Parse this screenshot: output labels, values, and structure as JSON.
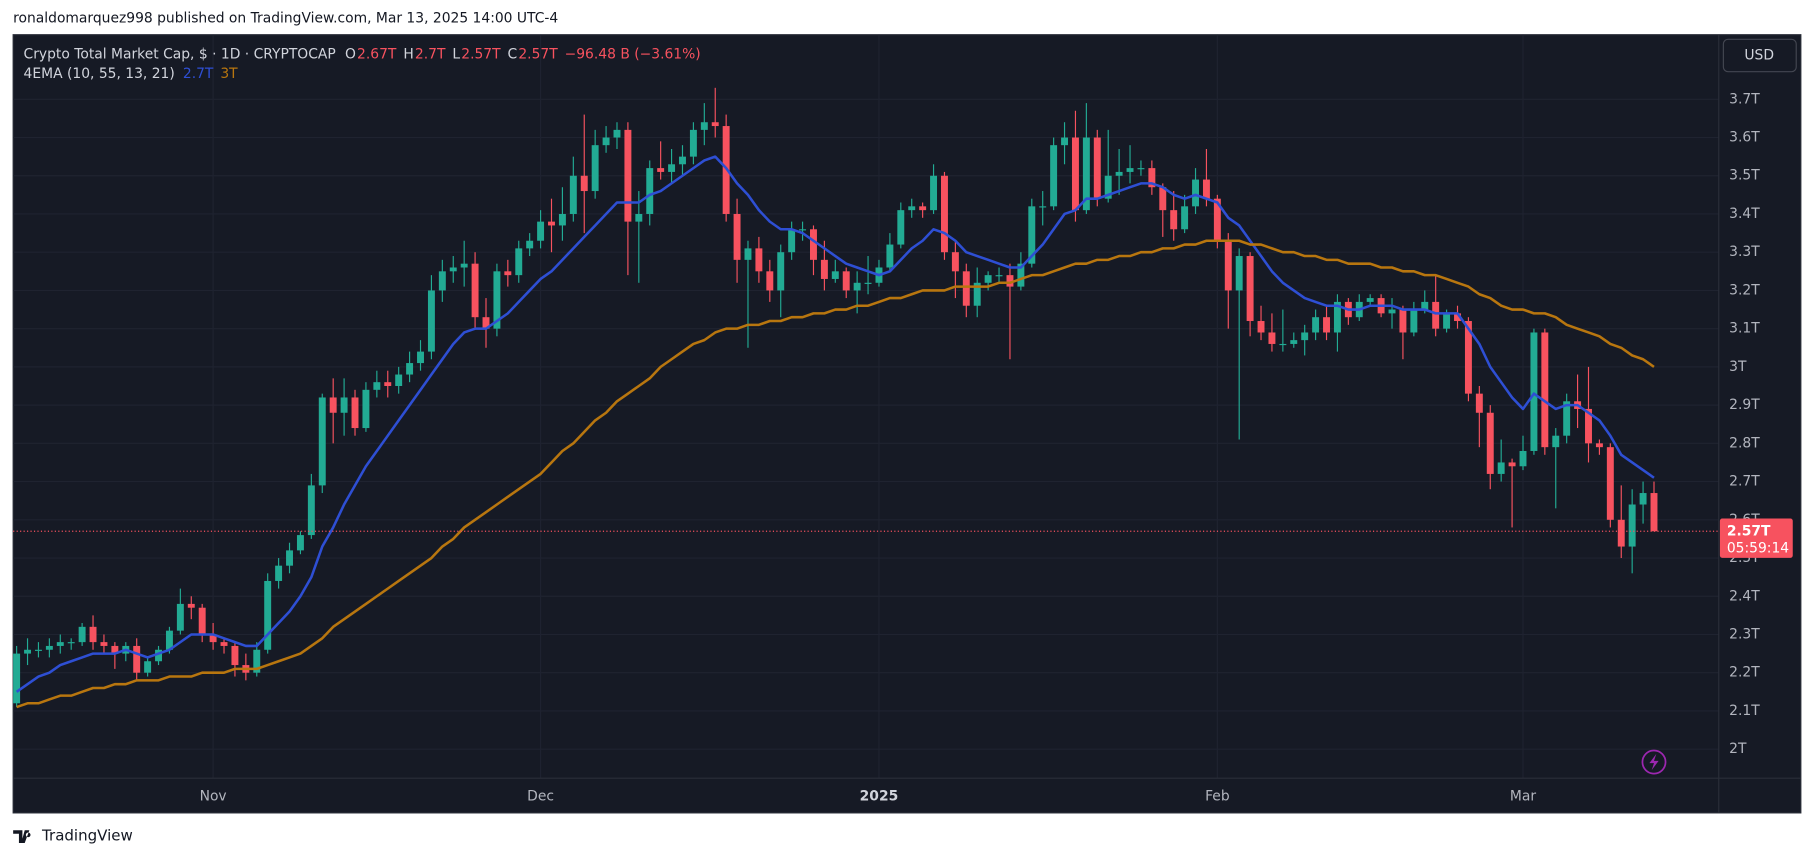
{
  "header": "ronaldomarquez998 published on TradingView.com, Mar 13, 2025 14:00 UTC-4",
  "footer": "TradingView",
  "currency": "USD",
  "legend": {
    "ohlc": [
      [
        "O",
        "2.67T"
      ],
      [
        "H",
        "2.7T"
      ],
      [
        "L",
        "2.57T"
      ],
      [
        "C",
        "2.57T"
      ]
    ],
    "change": "−96.48 B (−3.61%)",
    "indicator": "4EMA (10, 55, 13, 21)",
    "indicator_values": [
      "2.7T",
      "3T"
    ]
  },
  "chart_data": {
    "type": "candlestick",
    "title": "Crypto Total Market Cap, $ · 1D · CRYPTOCAP",
    "categories": [
      null,
      null,
      null,
      null,
      null,
      null,
      null,
      null,
      null,
      null,
      null,
      null,
      null,
      null,
      null,
      null,
      null,
      null,
      "Nov",
      null,
      null,
      null,
      null,
      null,
      null,
      null,
      null,
      null,
      null,
      null,
      null,
      null,
      null,
      null,
      null,
      null,
      null,
      null,
      null,
      null,
      null,
      null,
      null,
      null,
      null,
      null,
      null,
      null,
      "Dec",
      null,
      null,
      null,
      null,
      null,
      null,
      null,
      null,
      null,
      null,
      null,
      null,
      null,
      null,
      null,
      null,
      null,
      null,
      null,
      null,
      null,
      null,
      null,
      null,
      null,
      null,
      null,
      null,
      null,
      null,
      "2025",
      null,
      null,
      null,
      null,
      null,
      null,
      null,
      null,
      null,
      null,
      null,
      null,
      null,
      null,
      null,
      null,
      null,
      null,
      null,
      null,
      null,
      null,
      null,
      null,
      null,
      null,
      null,
      null,
      null,
      null,
      "Feb",
      null,
      null,
      null,
      null,
      null,
      null,
      null,
      null,
      null,
      null,
      null,
      null,
      null,
      null,
      null,
      null,
      null,
      null,
      null,
      null,
      null,
      null,
      null,
      null,
      null,
      null,
      null,
      "Mar",
      null,
      null,
      null,
      null,
      null,
      null,
      null,
      null,
      null,
      null,
      null,
      null
    ],
    "open": [
      2.12,
      2.25,
      2.26,
      2.26,
      2.27,
      2.28,
      2.28,
      2.32,
      2.28,
      2.27,
      2.25,
      2.27,
      2.2,
      2.23,
      2.26,
      2.31,
      2.38,
      2.37,
      2.3,
      2.28,
      2.27,
      2.22,
      2.2,
      2.26,
      2.44,
      2.48,
      2.52,
      2.56,
      2.69,
      2.92,
      2.88,
      2.92,
      2.84,
      2.94,
      2.96,
      2.95,
      2.98,
      3.01,
      3.04,
      3.2,
      3.25,
      3.26,
      3.27,
      3.13,
      3.1,
      3.25,
      3.24,
      3.31,
      3.33,
      3.38,
      3.37,
      3.4,
      3.5,
      3.46,
      3.58,
      3.6,
      3.62,
      3.38,
      3.4,
      3.52,
      3.51,
      3.53,
      3.55,
      3.62,
      3.64,
      3.63,
      3.4,
      3.28,
      3.31,
      3.25,
      3.2,
      3.3,
      3.36,
      3.36,
      3.28,
      3.23,
      3.25,
      3.2,
      3.22,
      3.22,
      3.26,
      3.32,
      3.41,
      3.42,
      3.41,
      3.5,
      3.3,
      3.25,
      3.16,
      3.22,
      3.24,
      3.24,
      3.21,
      3.27,
      3.42,
      3.42,
      3.58,
      3.6,
      3.41,
      3.6,
      3.44,
      3.5,
      3.51,
      3.52,
      3.52,
      3.47,
      3.41,
      3.36,
      3.42,
      3.49,
      3.44,
      3.33,
      3.2,
      3.29,
      3.12,
      3.09,
      3.06,
      3.06,
      3.07,
      3.09,
      3.13,
      3.09,
      3.17,
      3.13,
      3.17,
      3.18,
      3.14,
      3.15,
      3.09,
      3.15,
      3.17,
      3.1,
      3.14,
      3.12,
      2.93,
      2.88,
      2.72,
      2.75,
      2.74,
      2.78,
      3.09,
      2.79,
      2.82,
      2.91,
      2.89,
      2.8,
      2.79,
      2.6,
      2.53,
      2.64,
      2.67
    ],
    "high": [
      2.27,
      2.29,
      2.28,
      2.29,
      2.3,
      2.29,
      2.33,
      2.35,
      2.3,
      2.28,
      2.28,
      2.29,
      2.24,
      2.27,
      2.32,
      2.42,
      2.4,
      2.38,
      2.33,
      2.29,
      2.28,
      2.25,
      2.28,
      2.46,
      2.5,
      2.54,
      2.57,
      2.72,
      2.93,
      2.97,
      2.97,
      2.94,
      2.96,
      2.99,
      2.99,
      3.0,
      3.04,
      3.07,
      3.24,
      3.28,
      3.29,
      3.33,
      3.3,
      3.18,
      3.27,
      3.28,
      3.33,
      3.35,
      3.41,
      3.44,
      3.47,
      3.55,
      3.66,
      3.62,
      3.63,
      3.64,
      3.64,
      3.46,
      3.54,
      3.59,
      3.57,
      3.58,
      3.64,
      3.69,
      3.73,
      3.66,
      3.44,
      3.33,
      3.34,
      3.28,
      3.32,
      3.38,
      3.38,
      3.37,
      3.33,
      3.28,
      3.26,
      3.25,
      3.29,
      3.28,
      3.35,
      3.43,
      3.44,
      3.43,
      3.53,
      3.51,
      3.33,
      3.27,
      3.26,
      3.25,
      3.26,
      3.27,
      3.3,
      3.44,
      3.46,
      3.6,
      3.64,
      3.67,
      3.69,
      3.62,
      3.62,
      3.57,
      3.58,
      3.54,
      3.54,
      3.48,
      3.46,
      3.45,
      3.52,
      3.57,
      3.45,
      3.35,
      3.31,
      3.3,
      3.16,
      3.14,
      3.15,
      3.09,
      3.11,
      3.15,
      3.16,
      3.19,
      3.18,
      3.19,
      3.19,
      3.19,
      3.18,
      3.16,
      3.17,
      3.2,
      3.24,
      3.15,
      3.16,
      3.13,
      2.95,
      2.9,
      2.81,
      2.76,
      2.82,
      3.1,
      3.1,
      2.84,
      2.93,
      2.98,
      3.0,
      2.81,
      2.8,
      2.69,
      2.68,
      2.7,
      2.7
    ],
    "low": [
      2.11,
      2.22,
      2.24,
      2.24,
      2.25,
      2.26,
      2.27,
      2.26,
      2.25,
      2.21,
      2.23,
      2.18,
      2.19,
      2.22,
      2.25,
      2.3,
      2.34,
      2.28,
      2.26,
      2.25,
      2.19,
      2.18,
      2.19,
      2.25,
      2.42,
      2.46,
      2.51,
      2.55,
      2.67,
      2.8,
      2.82,
      2.82,
      2.83,
      2.92,
      2.92,
      2.93,
      2.96,
      2.99,
      3.02,
      3.17,
      3.22,
      3.21,
      3.1,
      3.05,
      3.08,
      3.21,
      3.22,
      3.29,
      3.31,
      3.3,
      3.33,
      3.38,
      3.35,
      3.44,
      3.56,
      3.57,
      3.24,
      3.22,
      3.37,
      3.49,
      3.48,
      3.5,
      3.53,
      3.58,
      3.6,
      3.38,
      3.22,
      3.05,
      3.22,
      3.17,
      3.13,
      3.28,
      3.33,
      3.24,
      3.2,
      3.22,
      3.18,
      3.14,
      3.19,
      3.21,
      3.25,
      3.31,
      3.39,
      3.39,
      3.4,
      3.28,
      3.18,
      3.13,
      3.13,
      3.2,
      3.22,
      3.02,
      3.2,
      3.26,
      3.37,
      3.41,
      3.53,
      3.38,
      3.4,
      3.42,
      3.43,
      3.45,
      3.48,
      3.5,
      3.45,
      3.34,
      3.33,
      3.35,
      3.4,
      3.42,
      3.31,
      3.1,
      2.81,
      3.08,
      3.07,
      3.04,
      3.04,
      3.05,
      3.03,
      3.07,
      3.07,
      3.04,
      3.11,
      3.12,
      3.16,
      3.13,
      3.1,
      3.02,
      3.08,
      3.14,
      3.08,
      3.09,
      3.1,
      2.91,
      2.79,
      2.68,
      2.7,
      2.58,
      2.73,
      2.77,
      2.77,
      2.63,
      2.8,
      2.84,
      2.75,
      2.77,
      2.58,
      2.5,
      2.46,
      2.59,
      2.57
    ],
    "close": [
      2.25,
      2.26,
      2.26,
      2.27,
      2.28,
      2.28,
      2.32,
      2.28,
      2.27,
      2.25,
      2.27,
      2.2,
      2.23,
      2.26,
      2.31,
      2.38,
      2.37,
      2.3,
      2.28,
      2.27,
      2.22,
      2.2,
      2.26,
      2.44,
      2.48,
      2.52,
      2.56,
      2.69,
      2.92,
      2.88,
      2.92,
      2.84,
      2.94,
      2.96,
      2.95,
      2.98,
      3.01,
      3.04,
      3.2,
      3.25,
      3.26,
      3.27,
      3.13,
      3.1,
      3.25,
      3.24,
      3.31,
      3.33,
      3.38,
      3.37,
      3.4,
      3.5,
      3.46,
      3.58,
      3.6,
      3.62,
      3.38,
      3.4,
      3.52,
      3.51,
      3.53,
      3.55,
      3.62,
      3.64,
      3.63,
      3.4,
      3.28,
      3.31,
      3.25,
      3.2,
      3.3,
      3.36,
      3.36,
      3.28,
      3.23,
      3.25,
      3.2,
      3.22,
      3.22,
      3.26,
      3.32,
      3.41,
      3.42,
      3.41,
      3.5,
      3.3,
      3.25,
      3.16,
      3.22,
      3.24,
      3.24,
      3.21,
      3.27,
      3.42,
      3.42,
      3.58,
      3.6,
      3.41,
      3.6,
      3.44,
      3.5,
      3.51,
      3.52,
      3.52,
      3.47,
      3.41,
      3.36,
      3.42,
      3.49,
      3.44,
      3.33,
      3.2,
      3.29,
      3.12,
      3.09,
      3.06,
      3.06,
      3.07,
      3.09,
      3.13,
      3.09,
      3.17,
      3.13,
      3.17,
      3.18,
      3.14,
      3.15,
      3.09,
      3.15,
      3.17,
      3.1,
      3.14,
      3.12,
      2.93,
      2.88,
      2.72,
      2.75,
      2.74,
      2.78,
      3.09,
      2.79,
      2.82,
      2.91,
      2.89,
      2.8,
      2.79,
      2.6,
      2.53,
      2.64,
      2.67,
      2.57
    ],
    "up_color": "#22ab94",
    "down_color": "#f7525f",
    "lines": [
      {
        "color": "#2e4fd4",
        "values": [
          2.15,
          2.17,
          2.19,
          2.2,
          2.22,
          2.23,
          2.24,
          2.25,
          2.25,
          2.25,
          2.26,
          2.25,
          2.24,
          2.25,
          2.26,
          2.28,
          2.3,
          2.3,
          2.3,
          2.29,
          2.28,
          2.27,
          2.27,
          2.3,
          2.33,
          2.36,
          2.4,
          2.45,
          2.53,
          2.58,
          2.64,
          2.69,
          2.74,
          2.78,
          2.82,
          2.86,
          2.9,
          2.94,
          2.98,
          3.02,
          3.06,
          3.09,
          3.1,
          3.1,
          3.12,
          3.14,
          3.17,
          3.2,
          3.23,
          3.25,
          3.28,
          3.31,
          3.34,
          3.37,
          3.4,
          3.43,
          3.43,
          3.43,
          3.45,
          3.46,
          3.48,
          3.5,
          3.52,
          3.54,
          3.55,
          3.52,
          3.48,
          3.45,
          3.41,
          3.38,
          3.36,
          3.36,
          3.35,
          3.33,
          3.31,
          3.29,
          3.27,
          3.26,
          3.25,
          3.24,
          3.25,
          3.28,
          3.31,
          3.33,
          3.36,
          3.35,
          3.33,
          3.3,
          3.29,
          3.28,
          3.27,
          3.26,
          3.26,
          3.29,
          3.32,
          3.36,
          3.4,
          3.41,
          3.44,
          3.44,
          3.45,
          3.46,
          3.47,
          3.48,
          3.48,
          3.47,
          3.45,
          3.44,
          3.45,
          3.44,
          3.43,
          3.39,
          3.37,
          3.33,
          3.29,
          3.25,
          3.22,
          3.2,
          3.18,
          3.17,
          3.16,
          3.16,
          3.15,
          3.15,
          3.16,
          3.16,
          3.16,
          3.15,
          3.15,
          3.15,
          3.14,
          3.14,
          3.14,
          3.1,
          3.06,
          3.0,
          2.96,
          2.92,
          2.89,
          2.93,
          2.91,
          2.89,
          2.9,
          2.9,
          2.88,
          2.86,
          2.82,
          2.77,
          2.75,
          2.73,
          2.71
        ]
      },
      {
        "color": "#b8760f",
        "values": [
          2.11,
          2.12,
          2.12,
          2.13,
          2.14,
          2.14,
          2.15,
          2.16,
          2.16,
          2.17,
          2.17,
          2.18,
          2.18,
          2.18,
          2.19,
          2.19,
          2.19,
          2.2,
          2.2,
          2.2,
          2.21,
          2.21,
          2.21,
          2.22,
          2.23,
          2.24,
          2.25,
          2.27,
          2.29,
          2.32,
          2.34,
          2.36,
          2.38,
          2.4,
          2.42,
          2.44,
          2.46,
          2.48,
          2.5,
          2.53,
          2.55,
          2.58,
          2.6,
          2.62,
          2.64,
          2.66,
          2.68,
          2.7,
          2.72,
          2.75,
          2.78,
          2.8,
          2.83,
          2.86,
          2.88,
          2.91,
          2.93,
          2.95,
          2.97,
          3.0,
          3.02,
          3.04,
          3.06,
          3.07,
          3.09,
          3.1,
          3.1,
          3.11,
          3.11,
          3.12,
          3.12,
          3.13,
          3.13,
          3.14,
          3.14,
          3.15,
          3.15,
          3.16,
          3.16,
          3.17,
          3.18,
          3.18,
          3.19,
          3.2,
          3.2,
          3.2,
          3.21,
          3.21,
          3.21,
          3.21,
          3.22,
          3.22,
          3.23,
          3.24,
          3.24,
          3.25,
          3.26,
          3.27,
          3.27,
          3.28,
          3.28,
          3.29,
          3.29,
          3.3,
          3.3,
          3.31,
          3.31,
          3.32,
          3.32,
          3.33,
          3.33,
          3.33,
          3.33,
          3.32,
          3.32,
          3.31,
          3.3,
          3.3,
          3.29,
          3.29,
          3.28,
          3.28,
          3.27,
          3.27,
          3.27,
          3.26,
          3.26,
          3.25,
          3.25,
          3.24,
          3.24,
          3.23,
          3.22,
          3.21,
          3.19,
          3.18,
          3.16,
          3.15,
          3.15,
          3.14,
          3.14,
          3.13,
          3.11,
          3.1,
          3.09,
          3.08,
          3.06,
          3.05,
          3.03,
          3.02,
          3.0
        ]
      }
    ],
    "last_price": {
      "value": 2.57,
      "label": "2.57T"
    },
    "countdown": "05:59:14",
    "ylim": [
      1.924,
      3.869
    ],
    "yticks": [
      {
        "value": 2,
        "label": "2T"
      },
      {
        "value": 2.1,
        "label": "2.1T"
      },
      {
        "value": 2.2,
        "label": "2.2T"
      },
      {
        "value": 2.3,
        "label": "2.3T"
      },
      {
        "value": 2.4,
        "label": "2.4T"
      },
      {
        "value": 2.5,
        "label": "2.5T"
      },
      {
        "value": 2.6,
        "label": "2.6T"
      },
      {
        "value": 2.7,
        "label": "2.7T"
      },
      {
        "value": 2.8,
        "label": "2.8T"
      },
      {
        "value": 2.9,
        "label": "2.9T"
      },
      {
        "value": 3,
        "label": "3T"
      },
      {
        "value": 3.1,
        "label": "3.1T"
      },
      {
        "value": 3.2,
        "label": "3.2T"
      },
      {
        "value": 3.3,
        "label": "3.3T"
      },
      {
        "value": 3.4,
        "label": "3.4T"
      },
      {
        "value": 3.5,
        "label": "3.5T"
      },
      {
        "value": 3.6,
        "label": "3.6T"
      },
      {
        "value": 3.7,
        "label": "3.7T"
      }
    ],
    "grid": true
  }
}
